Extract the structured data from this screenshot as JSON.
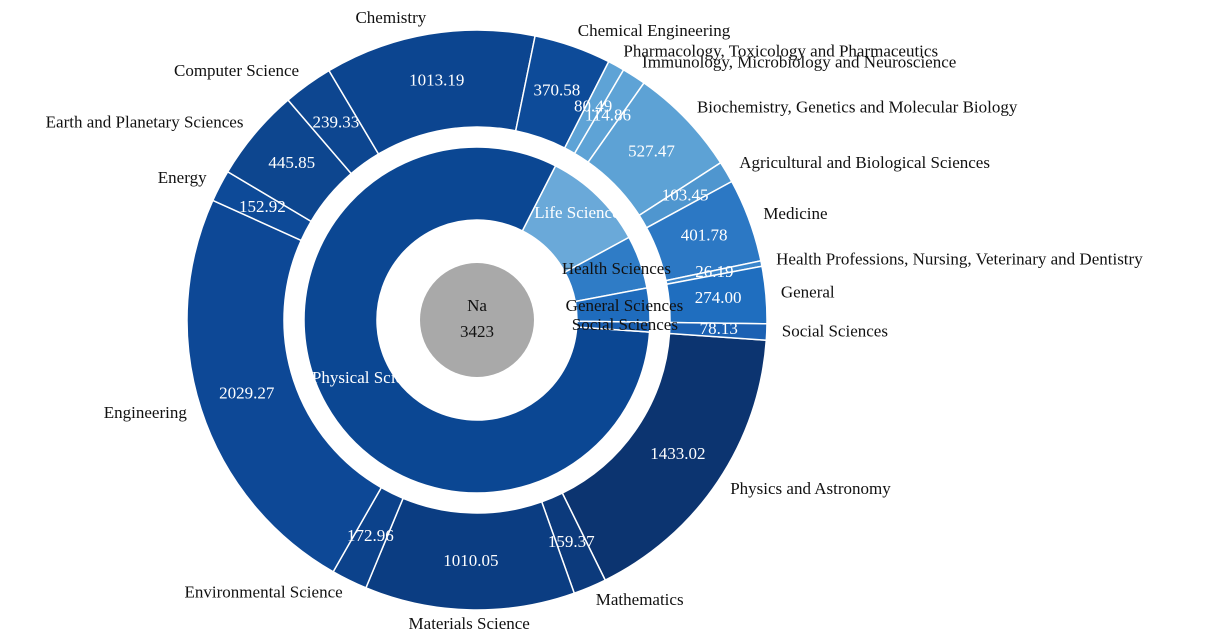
{
  "chart_data": {
    "type": "sunburst",
    "center": {
      "label": "Na",
      "value": 3423,
      "color": "#a9a9a9"
    },
    "groups": [
      {
        "name": "Physical Sciences",
        "color": "#0b4793",
        "children": [
          {
            "name": "Physics and Astronomy",
            "value": 1433.02,
            "color": "#0c3470"
          },
          {
            "name": "Mathematics",
            "value": 159.37,
            "color": "#0c3a7c"
          },
          {
            "name": "Materials Science",
            "value": 1010.05,
            "color": "#0b3d82"
          },
          {
            "name": "Environmental Science",
            "value": 172.96,
            "color": "#0c428b"
          },
          {
            "name": "Engineering",
            "value": 2029.27,
            "color": "#0d4896"
          },
          {
            "name": "Energy",
            "value": 152.92,
            "color": "#0d4a98"
          },
          {
            "name": "Earth and Planetary Sciences",
            "value": 445.85,
            "color": "#0d468f"
          },
          {
            "name": "Computer Science",
            "value": 239.33,
            "color": "#0d4690"
          },
          {
            "name": "Chemistry",
            "value": 1013.19,
            "color": "#0c4590"
          },
          {
            "name": "Chemical Engineering",
            "value": 370.58,
            "color": "#0d4b99"
          }
        ]
      },
      {
        "name": "Life Sciences",
        "color": "#6aa9d9",
        "children": [
          {
            "name": "Pharmacology, Toxicology and Pharmaceutics",
            "value": 80.49,
            "color": "#5ea3d6"
          },
          {
            "name": "Immunology, Microbiology and Neuroscience",
            "value": 114.86,
            "color": "#5ea3d6"
          },
          {
            "name": "Biochemistry, Genetics and Molecular Biology",
            "value": 527.47,
            "color": "#5da2d5"
          },
          {
            "name": "Agricultural and Biological Sciences",
            "value": 103.45,
            "color": "#4f96cf"
          }
        ]
      },
      {
        "name": "Health Sciences",
        "color": "#2f7cc6",
        "children": [
          {
            "name": "Medicine",
            "value": 401.78,
            "color": "#2c78c4"
          },
          {
            "name": "Health Professions, Nursing, Veterinary and Dentistry",
            "value": 26.19,
            "color": "#3a85cb"
          }
        ]
      },
      {
        "name": "General Sciences",
        "color": "#1f6cbd",
        "children": [
          {
            "name": "General",
            "value": 274,
            "value_label": "274.00",
            "color": "#1f6ebf"
          }
        ]
      },
      {
        "name": "Social Sciences",
        "color": "#1a5fb0",
        "children": [
          {
            "name": "Social Sciences",
            "value": 78.13,
            "color": "#1b61b3"
          }
        ]
      }
    ]
  }
}
